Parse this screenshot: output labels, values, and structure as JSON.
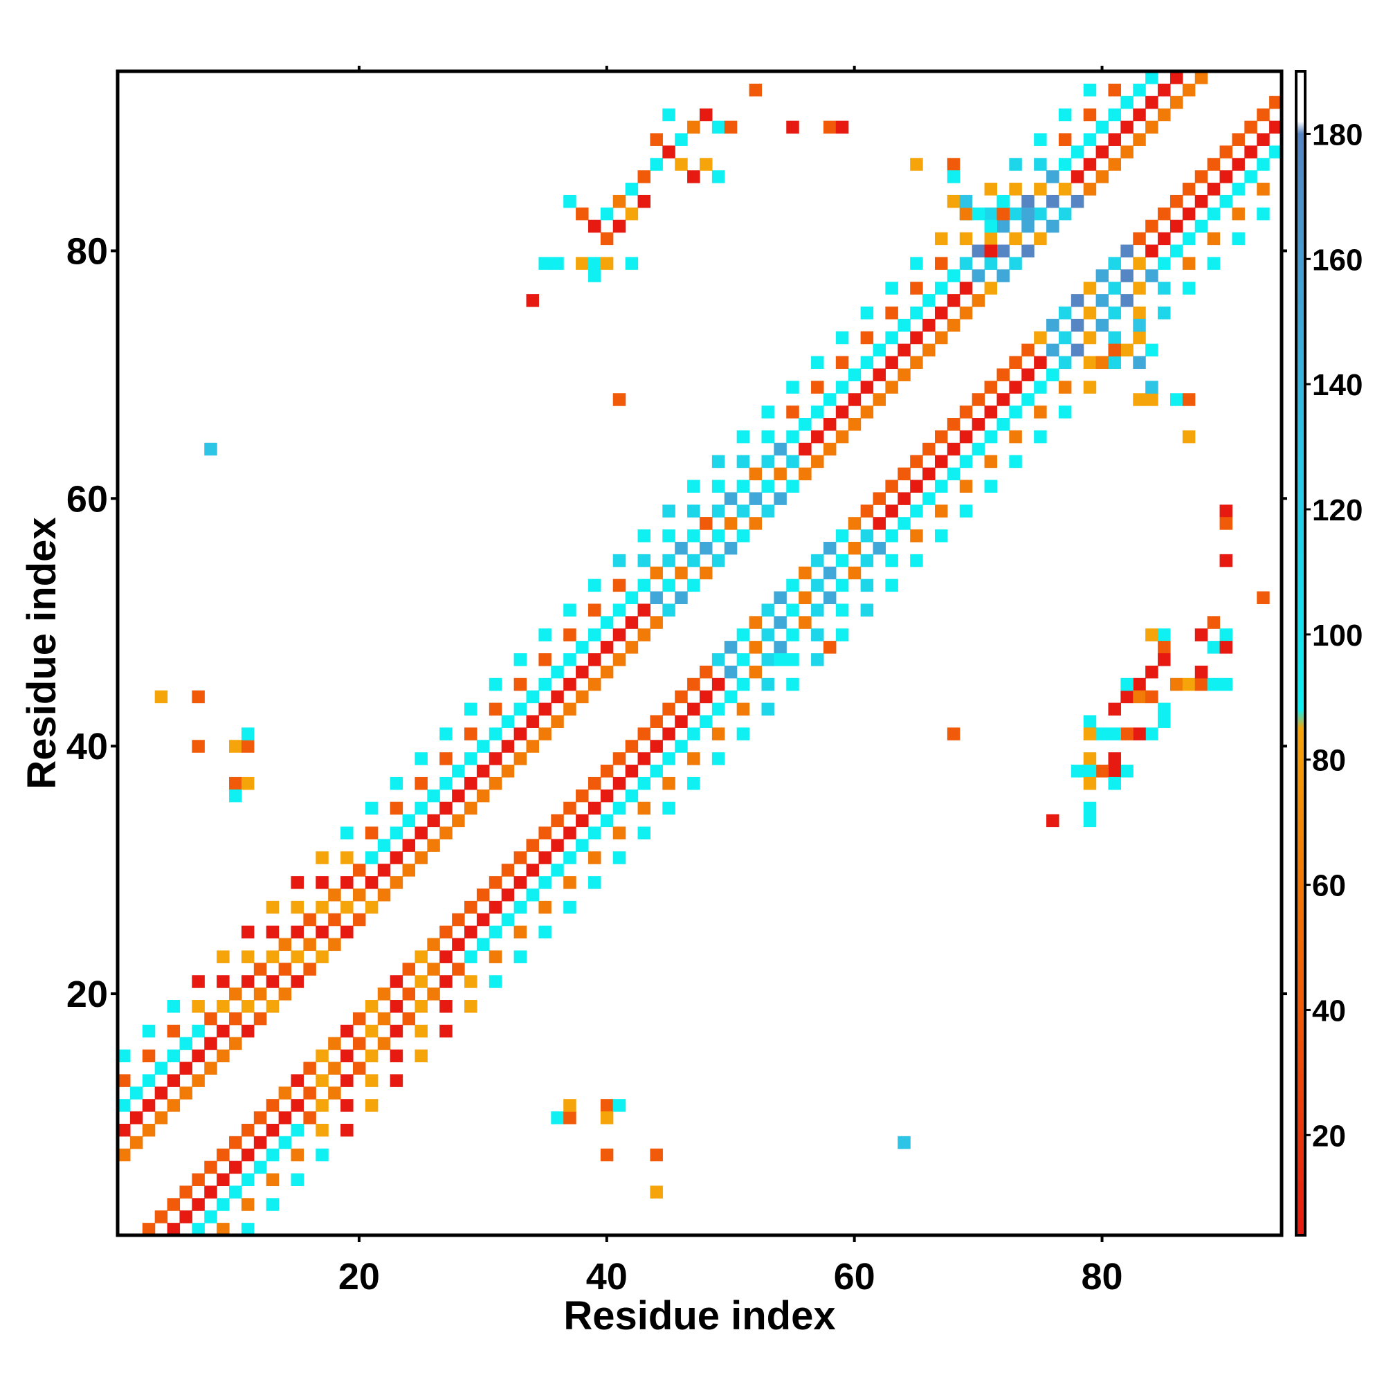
{
  "chart_data": {
    "type": "heatmap",
    "title": "",
    "xlabel": "Residue index",
    "ylabel": "Residue index",
    "xlim": [
      0.5,
      94.5
    ],
    "ylim": [
      0.5,
      94.5
    ],
    "x_ticks": [
      20,
      40,
      60,
      80
    ],
    "y_ticks": [
      20,
      40,
      60,
      80
    ],
    "grid": false,
    "colorbar": {
      "range": [
        4,
        190
      ],
      "ticks": [
        20,
        40,
        60,
        80,
        100,
        120,
        140,
        160,
        180
      ],
      "stops": [
        {
          "value": 4,
          "color": "#e61a10"
        },
        {
          "value": 40,
          "color": "#f05a08"
        },
        {
          "value": 62,
          "color": "#f27a06"
        },
        {
          "value": 85,
          "color": "#f5a40a"
        },
        {
          "value": 88,
          "color": "#0ff0f2"
        },
        {
          "value": 110,
          "color": "#1ed6ea"
        },
        {
          "value": 130,
          "color": "#2ec4e6"
        },
        {
          "value": 150,
          "color": "#40a8d8"
        },
        {
          "value": 180,
          "color": "#5585c2"
        },
        {
          "value": 182,
          "color": "#ffffff"
        },
        {
          "value": 190,
          "color": "#ffffff"
        }
      ]
    },
    "band": {
      "x_start": 1,
      "y_start": 3,
      "length": 92,
      "half_width": 6,
      "gap": 2,
      "offset_colors": {
        "2": "#f05a08",
        "3": "#e61a10",
        "4": "#0ff0f2",
        "5": "#f27a06",
        "6": "#0ff0f2",
        "-2": "#f27a06",
        "-3": "#e61a10",
        "-4": "#0ff0f2",
        "-5": "#f05a08",
        "-6": "#0ff0f2"
      },
      "segment_overrides": [
        {
          "from": 12,
          "to": 24,
          "colors": [
            "#f5a40a",
            "#f27a06",
            "#e61a10",
            "#f05a08"
          ]
        },
        {
          "from": 47,
          "to": 58,
          "colors": [
            "#1ed6ea",
            "#40a8d8",
            "#0ff0f2",
            "#f27a06"
          ]
        },
        {
          "from": 73,
          "to": 80,
          "colors": [
            "#1ed6ea",
            "#5585c2",
            "#f5a40a",
            "#40a8d8"
          ]
        }
      ]
    },
    "cells": [
      {
        "x": 37,
        "y": 84,
        "color": "#0ff0f2"
      },
      {
        "x": 38,
        "y": 83,
        "color": "#f05a08"
      },
      {
        "x": 39,
        "y": 82,
        "color": "#e61a10"
      },
      {
        "x": 40,
        "y": 83,
        "color": "#0ff0f2"
      },
      {
        "x": 41,
        "y": 84,
        "color": "#f27a06"
      },
      {
        "x": 42,
        "y": 85,
        "color": "#0ff0f2"
      },
      {
        "x": 43,
        "y": 86,
        "color": "#f05a08"
      },
      {
        "x": 44,
        "y": 87,
        "color": "#0ff0f2"
      },
      {
        "x": 45,
        "y": 88,
        "color": "#e61a10"
      },
      {
        "x": 46,
        "y": 89,
        "color": "#0ff0f2"
      },
      {
        "x": 47,
        "y": 90,
        "color": "#f27a06"
      },
      {
        "x": 48,
        "y": 91,
        "color": "#e61a10"
      },
      {
        "x": 49,
        "y": 90,
        "color": "#0ff0f2"
      },
      {
        "x": 50,
        "y": 90,
        "color": "#f05a08"
      },
      {
        "x": 45,
        "y": 91,
        "color": "#0ff0f2"
      },
      {
        "x": 44,
        "y": 89,
        "color": "#f05a08"
      },
      {
        "x": 43,
        "y": 84,
        "color": "#e61a10"
      },
      {
        "x": 42,
        "y": 83,
        "color": "#f5a40a"
      },
      {
        "x": 41,
        "y": 82,
        "color": "#e61a10"
      },
      {
        "x": 40,
        "y": 81,
        "color": "#f05a08"
      },
      {
        "x": 35,
        "y": 79,
        "color": "#0ff0f2"
      },
      {
        "x": 36,
        "y": 79,
        "color": "#0ff0f2"
      },
      {
        "x": 38,
        "y": 79,
        "color": "#f5a40a"
      },
      {
        "x": 39,
        "y": 79,
        "color": "#0ff0f2"
      },
      {
        "x": 40,
        "y": 79,
        "color": "#f5a40a"
      },
      {
        "x": 42,
        "y": 79,
        "color": "#0ff0f2"
      },
      {
        "x": 39,
        "y": 78,
        "color": "#0ff0f2"
      },
      {
        "x": 46,
        "y": 87,
        "color": "#f5a40a"
      },
      {
        "x": 47,
        "y": 86,
        "color": "#e61a10"
      },
      {
        "x": 48,
        "y": 87,
        "color": "#f5a40a"
      },
      {
        "x": 49,
        "y": 86,
        "color": "#0ff0f2"
      },
      {
        "x": 34,
        "y": 76,
        "color": "#e61a10"
      },
      {
        "x": 52,
        "y": 93,
        "color": "#f05a08"
      },
      {
        "x": 55,
        "y": 90,
        "color": "#e61a10"
      },
      {
        "x": 58,
        "y": 90,
        "color": "#f05a08"
      },
      {
        "x": 59,
        "y": 90,
        "color": "#e61a10"
      },
      {
        "x": 41,
        "y": 68,
        "color": "#f05a08"
      },
      {
        "x": 8,
        "y": 64,
        "color": "#2ec4e6"
      },
      {
        "x": 65,
        "y": 87,
        "color": "#f5a40a"
      },
      {
        "x": 68,
        "y": 87,
        "color": "#f05a08"
      },
      {
        "x": 68,
        "y": 86,
        "color": "#0ff0f2"
      },
      {
        "x": 68,
        "y": 84,
        "color": "#f5a40a"
      },
      {
        "x": 69,
        "y": 83,
        "color": "#f27a06"
      },
      {
        "x": 69,
        "y": 84,
        "color": "#2ec4e6"
      },
      {
        "x": 70,
        "y": 83,
        "color": "#0ff0f2"
      },
      {
        "x": 71,
        "y": 82,
        "color": "#0ff0f2"
      },
      {
        "x": 72,
        "y": 83,
        "color": "#f05a08"
      },
      {
        "x": 72,
        "y": 84,
        "color": "#0ff0f2"
      },
      {
        "x": 74,
        "y": 83,
        "color": "#40a8d8"
      },
      {
        "x": 71,
        "y": 80,
        "color": "#e61a10"
      },
      {
        "x": 48,
        "y": 58,
        "color": "#f05a08"
      },
      {
        "x": 58,
        "y": 48,
        "color": "#f05a08"
      },
      {
        "x": 54,
        "y": 47,
        "color": "#0ff0f2"
      },
      {
        "x": 83,
        "y": 74,
        "color": "#2ec4e6"
      },
      {
        "x": 84,
        "y": 72,
        "color": "#0ff0f2"
      },
      {
        "x": 83,
        "y": 71,
        "color": "#40a8d8"
      },
      {
        "x": 82,
        "y": 72,
        "color": "#f5a40a"
      },
      {
        "x": 81,
        "y": 72,
        "color": "#f05a08"
      },
      {
        "x": 80,
        "y": 71,
        "color": "#f27a06"
      },
      {
        "x": 83,
        "y": 68,
        "color": "#f5a40a"
      },
      {
        "x": 84,
        "y": 68,
        "color": "#f5a40a"
      },
      {
        "x": 84,
        "y": 69,
        "color": "#2ec4e6"
      },
      {
        "x": 86,
        "y": 68,
        "color": "#0ff0f2"
      },
      {
        "x": 87,
        "y": 68,
        "color": "#f05a08"
      },
      {
        "x": 87,
        "y": 65,
        "color": "#f5a40a"
      },
      {
        "x": 90,
        "y": 59,
        "color": "#e61a10"
      },
      {
        "x": 90,
        "y": 58,
        "color": "#f05a08"
      },
      {
        "x": 90,
        "y": 55,
        "color": "#e61a10"
      },
      {
        "x": 93,
        "y": 52,
        "color": "#f05a08"
      },
      {
        "x": 84,
        "y": 49,
        "color": "#f5a40a"
      },
      {
        "x": 85,
        "y": 49,
        "color": "#0ff0f2"
      },
      {
        "x": 85,
        "y": 48,
        "color": "#f05a08"
      },
      {
        "x": 85,
        "y": 47,
        "color": "#e61a10"
      },
      {
        "x": 84,
        "y": 46,
        "color": "#e61a10"
      },
      {
        "x": 83,
        "y": 45,
        "color": "#e61a10"
      },
      {
        "x": 82,
        "y": 44,
        "color": "#e61a10"
      },
      {
        "x": 81,
        "y": 43,
        "color": "#e61a10"
      },
      {
        "x": 82,
        "y": 45,
        "color": "#0ff0f2"
      },
      {
        "x": 83,
        "y": 44,
        "color": "#f27a06"
      },
      {
        "x": 84,
        "y": 44,
        "color": "#f05a08"
      },
      {
        "x": 85,
        "y": 43,
        "color": "#0ff0f2"
      },
      {
        "x": 85,
        "y": 42,
        "color": "#0ff0f2"
      },
      {
        "x": 84,
        "y": 41,
        "color": "#0ff0f2"
      },
      {
        "x": 83,
        "y": 41,
        "color": "#e61a10"
      },
      {
        "x": 82,
        "y": 41,
        "color": "#f05a08"
      },
      {
        "x": 81,
        "y": 41,
        "color": "#0ff0f2"
      },
      {
        "x": 80,
        "y": 41,
        "color": "#0ff0f2"
      },
      {
        "x": 79,
        "y": 42,
        "color": "#0ff0f2"
      },
      {
        "x": 79,
        "y": 41,
        "color": "#f5a40a"
      },
      {
        "x": 86,
        "y": 45,
        "color": "#f27a06"
      },
      {
        "x": 87,
        "y": 45,
        "color": "#f5a40a"
      },
      {
        "x": 88,
        "y": 45,
        "color": "#f05a08"
      },
      {
        "x": 89,
        "y": 45,
        "color": "#0ff0f2"
      },
      {
        "x": 90,
        "y": 45,
        "color": "#0ff0f2"
      },
      {
        "x": 88,
        "y": 46,
        "color": "#e61a10"
      },
      {
        "x": 89,
        "y": 48,
        "color": "#0ff0f2"
      },
      {
        "x": 88,
        "y": 49,
        "color": "#e61a10"
      },
      {
        "x": 89,
        "y": 50,
        "color": "#f05a08"
      },
      {
        "x": 90,
        "y": 49,
        "color": "#0ff0f2"
      },
      {
        "x": 90,
        "y": 48,
        "color": "#e61a10"
      },
      {
        "x": 82,
        "y": 38,
        "color": "#0ff0f2"
      },
      {
        "x": 81,
        "y": 38,
        "color": "#e61a10"
      },
      {
        "x": 80,
        "y": 38,
        "color": "#f05a08"
      },
      {
        "x": 79,
        "y": 39,
        "color": "#f5a40a"
      },
      {
        "x": 79,
        "y": 38,
        "color": "#0ff0f2"
      },
      {
        "x": 78,
        "y": 38,
        "color": "#0ff0f2"
      },
      {
        "x": 79,
        "y": 37,
        "color": "#f5a40a"
      },
      {
        "x": 81,
        "y": 39,
        "color": "#e61a10"
      },
      {
        "x": 81,
        "y": 37,
        "color": "#0ff0f2"
      },
      {
        "x": 79,
        "y": 35,
        "color": "#0ff0f2"
      },
      {
        "x": 79,
        "y": 34,
        "color": "#0ff0f2"
      },
      {
        "x": 76,
        "y": 34,
        "color": "#e61a10"
      },
      {
        "x": 68,
        "y": 41,
        "color": "#f05a08"
      },
      {
        "x": 4,
        "y": 44,
        "color": "#f5a40a"
      },
      {
        "x": 7,
        "y": 44,
        "color": "#f05a08"
      },
      {
        "x": 7,
        "y": 40,
        "color": "#f05a08"
      },
      {
        "x": 10,
        "y": 40,
        "color": "#f5a40a"
      },
      {
        "x": 11,
        "y": 40,
        "color": "#f05a08"
      },
      {
        "x": 11,
        "y": 41,
        "color": "#0ff0f2"
      },
      {
        "x": 10,
        "y": 37,
        "color": "#f05a08"
      },
      {
        "x": 11,
        "y": 37,
        "color": "#f5a40a"
      },
      {
        "x": 10,
        "y": 36,
        "color": "#0ff0f2"
      },
      {
        "x": 36,
        "y": 10,
        "color": "#0ff0f2"
      },
      {
        "x": 37,
        "y": 10,
        "color": "#f05a08"
      },
      {
        "x": 37,
        "y": 11,
        "color": "#f5a40a"
      },
      {
        "x": 40,
        "y": 11,
        "color": "#f05a08"
      },
      {
        "x": 41,
        "y": 11,
        "color": "#0ff0f2"
      },
      {
        "x": 40,
        "y": 10,
        "color": "#f5a40a"
      },
      {
        "x": 40,
        "y": 7,
        "color": "#f05a08"
      },
      {
        "x": 44,
        "y": 7,
        "color": "#f05a08"
      },
      {
        "x": 44,
        "y": 4,
        "color": "#f5a40a"
      },
      {
        "x": 64,
        "y": 8,
        "color": "#2ec4e6"
      }
    ]
  }
}
